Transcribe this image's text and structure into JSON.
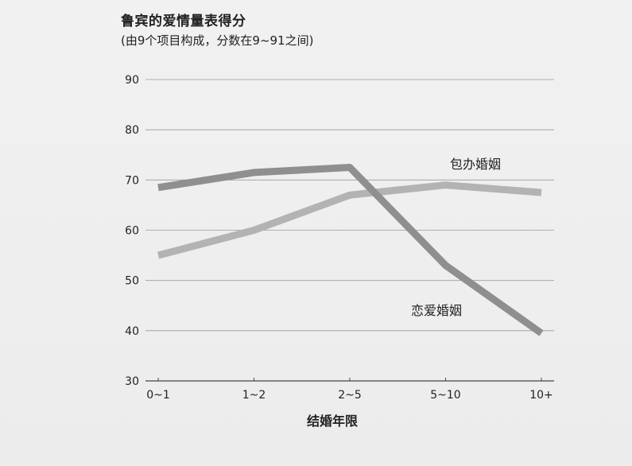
{
  "chart_data": {
    "type": "line",
    "title": "鲁宾的爱情量表得分",
    "subtitle": "(由9个项目构成，分数在9~91之间)",
    "xlabel": "结婚年限",
    "ylabel": "",
    "categories": [
      "0~1",
      "1~2",
      "2~5",
      "5~10",
      "10+"
    ],
    "ylim": [
      30,
      90
    ],
    "yticks": [
      30,
      40,
      50,
      60,
      70,
      80,
      90
    ],
    "grid": true,
    "series": [
      {
        "name": "包办婚姻",
        "values": [
          55,
          60,
          67,
          69,
          67.5
        ],
        "color": "#b3b3b3"
      },
      {
        "name": "恋爱婚姻",
        "values": [
          68.5,
          71.5,
          72.5,
          53,
          39.5
        ],
        "color": "#8f8f8f"
      }
    ]
  }
}
